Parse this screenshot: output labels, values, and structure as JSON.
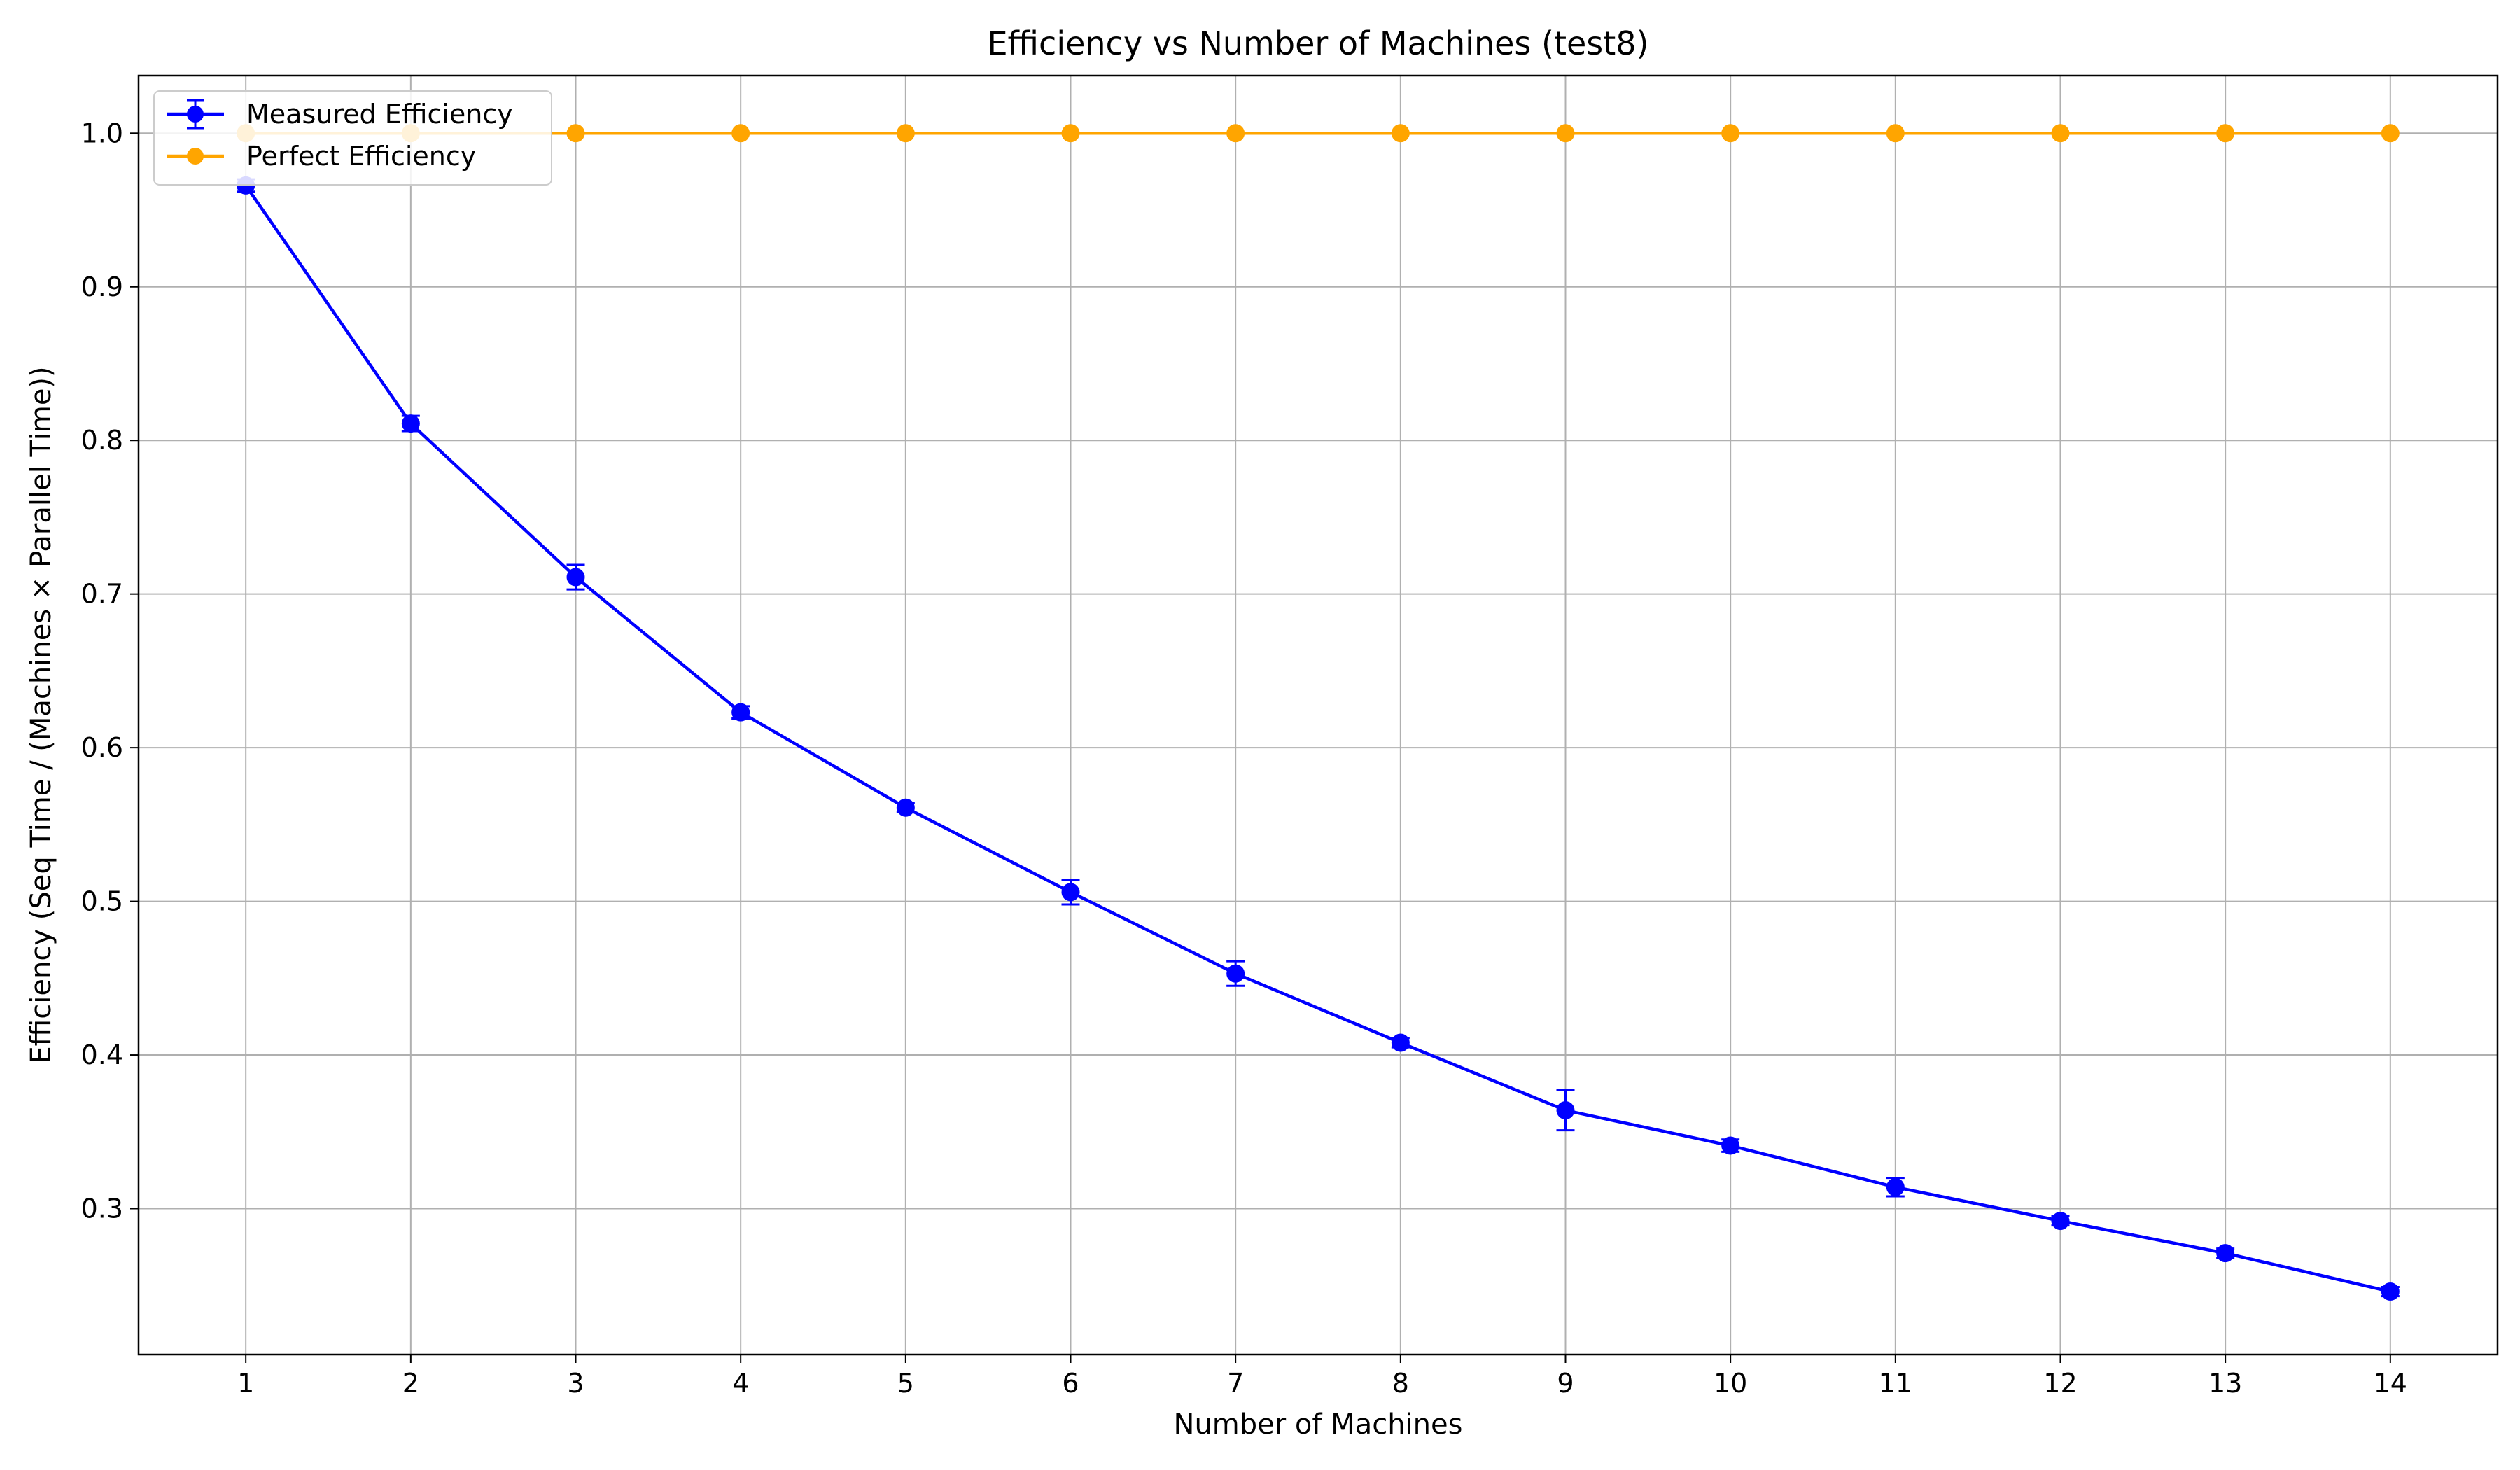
{
  "chart_data": {
    "type": "line",
    "title": "Efficiency vs Number of Machines (test8)",
    "xlabel": "Number of Machines",
    "ylabel": "Efficiency (Seq Time / (Machines × Parallel Time))",
    "x": [
      1,
      2,
      3,
      4,
      5,
      6,
      7,
      8,
      9,
      10,
      11,
      12,
      13,
      14
    ],
    "xlim": [
      0.35,
      14.65
    ],
    "ylim": [
      0.205,
      1.0375
    ],
    "x_ticks": [
      "1",
      "2",
      "3",
      "4",
      "5",
      "6",
      "7",
      "8",
      "9",
      "10",
      "11",
      "12",
      "13",
      "14"
    ],
    "y_ticks": [
      "0.3",
      "0.4",
      "0.5",
      "0.6",
      "0.7",
      "0.8",
      "0.9",
      "1.0"
    ],
    "grid": true,
    "legend_position": "top-left",
    "series": [
      {
        "name": "Measured Efficiency",
        "color": "#0000ff",
        "marker": "circle",
        "values": [
          0.966,
          0.811,
          0.711,
          0.623,
          0.561,
          0.506,
          0.453,
          0.408,
          0.364,
          0.341,
          0.314,
          0.292,
          0.271,
          0.246
        ],
        "error": [
          0.004,
          0.005,
          0.008,
          0.004,
          0.003,
          0.008,
          0.008,
          0.003,
          0.013,
          0.004,
          0.006,
          0.003,
          0.003,
          0.003
        ]
      },
      {
        "name": "Perfect Efficiency",
        "color": "#ffa500",
        "marker": "circle",
        "values": [
          1.0,
          1.0,
          1.0,
          1.0,
          1.0,
          1.0,
          1.0,
          1.0,
          1.0,
          1.0,
          1.0,
          1.0,
          1.0,
          1.0
        ]
      }
    ]
  }
}
